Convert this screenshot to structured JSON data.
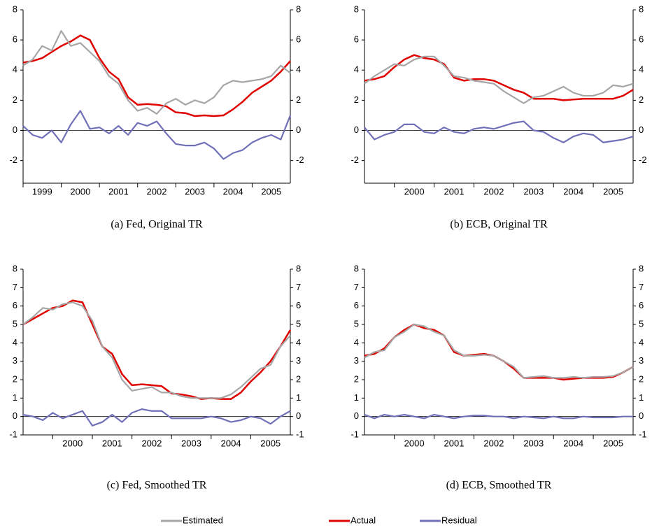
{
  "chart_data": [
    {
      "type": "line",
      "caption": "(a)  Fed, Original TR",
      "x": [
        1999,
        1999.25,
        1999.5,
        1999.75,
        2000,
        2000.25,
        2000.5,
        2000.75,
        2001,
        2001.25,
        2001.5,
        2001.75,
        2002,
        2002.25,
        2002.5,
        2002.75,
        2003,
        2003.25,
        2003.5,
        2003.75,
        2004,
        2004.25,
        2004.5,
        2004.75,
        2005,
        2005.25,
        2005.5,
        2005.75,
        2006
      ],
      "xlim": [
        1999,
        2006
      ],
      "xticks": [
        {
          "value": 1999,
          "label": "1999"
        },
        {
          "value": 2000,
          "label": "2000"
        },
        {
          "value": 2001,
          "label": "2001"
        },
        {
          "value": 2002,
          "label": "2002"
        },
        {
          "value": 2003,
          "label": "2003"
        },
        {
          "value": 2004,
          "label": "2004"
        },
        {
          "value": 2005,
          "label": "2005"
        }
      ],
      "ylim": [
        -3.5,
        8
      ],
      "yticks": [
        -2,
        0,
        2,
        4,
        6,
        8
      ],
      "series": [
        {
          "name": "Estimated",
          "color": "#a6a6a6",
          "values": [
            4.3,
            4.7,
            5.6,
            5.3,
            6.6,
            5.6,
            5.8,
            5.2,
            4.6,
            3.6,
            3.1,
            2.0,
            1.3,
            1.5,
            1.1,
            1.8,
            2.1,
            1.7,
            2.0,
            1.8,
            2.2,
            3.0,
            3.3,
            3.2,
            3.3,
            3.4,
            3.6,
            4.3,
            3.8
          ]
        },
        {
          "name": "Actual",
          "color": "#e00000",
          "values": [
            4.5,
            4.6,
            4.8,
            5.2,
            5.6,
            5.9,
            6.3,
            6.0,
            4.8,
            3.9,
            3.4,
            2.2,
            1.7,
            1.75,
            1.7,
            1.6,
            1.2,
            1.15,
            0.95,
            1.0,
            0.95,
            1.0,
            1.4,
            1.9,
            2.5,
            2.9,
            3.3,
            3.9,
            4.6
          ]
        },
        {
          "name": "Residual",
          "color": "#7070b8",
          "values": [
            0.3,
            -0.3,
            -0.5,
            0,
            -0.8,
            0.4,
            1.3,
            0.1,
            0.2,
            -0.2,
            0.3,
            -0.3,
            0.5,
            0.3,
            0.6,
            -0.2,
            -0.9,
            -1.0,
            -1.0,
            -0.8,
            -1.2,
            -1.9,
            -1.5,
            -1.3,
            -0.8,
            -0.5,
            -0.3,
            -0.6,
            1.0
          ]
        }
      ]
    },
    {
      "type": "line",
      "caption": "(b)  ECB, Original TR",
      "x": [
        1999.25,
        1999.5,
        1999.75,
        2000,
        2000.25,
        2000.5,
        2000.75,
        2001,
        2001.25,
        2001.5,
        2001.75,
        2002,
        2002.25,
        2002.5,
        2002.75,
        2003,
        2003.25,
        2003.5,
        2003.75,
        2004,
        2004.25,
        2004.5,
        2004.75,
        2005,
        2005.25,
        2005.5,
        2005.75,
        2006
      ],
      "xlim": [
        1999.25,
        2006
      ],
      "xticks": [
        {
          "value": 2000,
          "label": "2000"
        },
        {
          "value": 2001,
          "label": "2001"
        },
        {
          "value": 2002,
          "label": "2002"
        },
        {
          "value": 2003,
          "label": "2003"
        },
        {
          "value": 2004,
          "label": "2004"
        },
        {
          "value": 2005,
          "label": "2005"
        }
      ],
      "ylim": [
        -3.5,
        8
      ],
      "yticks": [
        -2,
        0,
        2,
        4,
        6,
        8
      ],
      "series": [
        {
          "name": "Estimated",
          "color": "#a6a6a6",
          "values": [
            3.1,
            3.6,
            4.0,
            4.4,
            4.3,
            4.7,
            4.9,
            4.9,
            4.3,
            3.6,
            3.5,
            3.3,
            3.2,
            3.1,
            2.6,
            2.2,
            1.8,
            2.2,
            2.3,
            2.6,
            2.9,
            2.5,
            2.3,
            2.3,
            2.5,
            3.0,
            2.9,
            3.1
          ]
        },
        {
          "name": "Actual",
          "color": "#e00000",
          "values": [
            3.3,
            3.4,
            3.6,
            4.2,
            4.7,
            5.0,
            4.8,
            4.7,
            4.4,
            3.5,
            3.3,
            3.4,
            3.4,
            3.3,
            3.0,
            2.7,
            2.5,
            2.1,
            2.1,
            2.1,
            2.0,
            2.05,
            2.1,
            2.1,
            2.1,
            2.1,
            2.3,
            2.7
          ]
        },
        {
          "name": "Residual",
          "color": "#7070b8",
          "values": [
            0.2,
            -0.6,
            -0.3,
            -0.1,
            0.4,
            0.4,
            -0.1,
            -0.2,
            0.2,
            -0.1,
            -0.2,
            0.1,
            0.2,
            0.1,
            0.3,
            0.5,
            0.6,
            0,
            -0.1,
            -0.5,
            -0.8,
            -0.4,
            -0.2,
            -0.3,
            -0.8,
            -0.7,
            -0.6,
            -0.4
          ]
        }
      ]
    },
    {
      "type": "line",
      "caption": "(c)  Fed, Smoothed TR",
      "x": [
        1999.25,
        1999.5,
        1999.75,
        2000,
        2000.25,
        2000.5,
        2000.75,
        2001,
        2001.25,
        2001.5,
        2001.75,
        2002,
        2002.25,
        2002.5,
        2002.75,
        2003,
        2003.25,
        2003.5,
        2003.75,
        2004,
        2004.25,
        2004.5,
        2004.75,
        2005,
        2005.25,
        2005.5,
        2005.75,
        2006
      ],
      "xlim": [
        1999.25,
        2006
      ],
      "xticks": [
        {
          "value": 2000,
          "label": "2000"
        },
        {
          "value": 2001,
          "label": "2001"
        },
        {
          "value": 2002,
          "label": "2002"
        },
        {
          "value": 2003,
          "label": "2003"
        },
        {
          "value": 2004,
          "label": "2004"
        },
        {
          "value": 2005,
          "label": "2005"
        }
      ],
      "ylim": [
        -1,
        8
      ],
      "yticks": [
        -1,
        0,
        1,
        2,
        3,
        4,
        5,
        6,
        7,
        8
      ],
      "series": [
        {
          "name": "Estimated",
          "color": "#a6a6a6",
          "values": [
            5.0,
            5.4,
            5.9,
            5.8,
            6.1,
            6.2,
            6.0,
            5.2,
            3.8,
            3.2,
            2.0,
            1.4,
            1.5,
            1.6,
            1.3,
            1.3,
            1.1,
            1.0,
            1.0,
            1.0,
            1.0,
            1.2,
            1.6,
            2.1,
            2.6,
            2.8,
            3.8,
            4.4
          ]
        },
        {
          "name": "Actual",
          "color": "#e00000",
          "values": [
            5.0,
            5.3,
            5.6,
            5.9,
            6.0,
            6.3,
            6.2,
            5.0,
            3.8,
            3.4,
            2.3,
            1.7,
            1.75,
            1.7,
            1.65,
            1.25,
            1.2,
            1.1,
            0.95,
            1.0,
            0.95,
            0.95,
            1.3,
            1.9,
            2.4,
            3.0,
            3.8,
            4.7
          ]
        },
        {
          "name": "Residual",
          "color": "#7070b8",
          "values": [
            0.1,
            0,
            -0.2,
            0.2,
            -0.1,
            0.1,
            0.3,
            -0.5,
            -0.3,
            0.1,
            -0.3,
            0.2,
            0.4,
            0.3,
            0.3,
            -0.1,
            -0.1,
            -0.1,
            -0.1,
            0,
            -0.1,
            -0.3,
            -0.2,
            0,
            -0.1,
            -0.4,
            0,
            0.3
          ]
        }
      ]
    },
    {
      "type": "line",
      "caption": "(d)  ECB, Smoothed TR",
      "x": [
        1999.25,
        1999.5,
        1999.75,
        2000,
        2000.25,
        2000.5,
        2000.75,
        2001,
        2001.25,
        2001.5,
        2001.75,
        2002,
        2002.25,
        2002.5,
        2002.75,
        2003,
        2003.25,
        2003.5,
        2003.75,
        2004,
        2004.25,
        2004.5,
        2004.75,
        2005,
        2005.25,
        2005.5,
        2005.75,
        2006
      ],
      "xlim": [
        1999.25,
        2006
      ],
      "xticks": [
        {
          "value": 2000,
          "label": "2000"
        },
        {
          "value": 2001,
          "label": "2001"
        },
        {
          "value": 2002,
          "label": "2002"
        },
        {
          "value": 2003,
          "label": "2003"
        },
        {
          "value": 2004,
          "label": "2004"
        },
        {
          "value": 2005,
          "label": "2005"
        }
      ],
      "ylim": [
        -1,
        8
      ],
      "yticks": [
        -1,
        0,
        1,
        2,
        3,
        4,
        5,
        6,
        7,
        8
      ],
      "series": [
        {
          "name": "Estimated",
          "color": "#a6a6a6",
          "values": [
            3.2,
            3.5,
            3.6,
            4.3,
            4.6,
            5.0,
            4.9,
            4.6,
            4.4,
            3.6,
            3.3,
            3.3,
            3.35,
            3.3,
            3.0,
            2.7,
            2.1,
            2.15,
            2.2,
            2.1,
            2.1,
            2.15,
            2.1,
            2.15,
            2.15,
            2.2,
            2.4,
            2.7
          ]
        },
        {
          "name": "Actual",
          "color": "#e00000",
          "values": [
            3.3,
            3.4,
            3.7,
            4.3,
            4.7,
            5.0,
            4.8,
            4.7,
            4.4,
            3.5,
            3.3,
            3.35,
            3.4,
            3.3,
            3.0,
            2.6,
            2.1,
            2.1,
            2.1,
            2.1,
            2.0,
            2.05,
            2.1,
            2.1,
            2.1,
            2.15,
            2.4,
            2.7
          ]
        },
        {
          "name": "Residual",
          "color": "#7070b8",
          "values": [
            0.1,
            -0.1,
            0.1,
            0,
            0.1,
            0,
            -0.1,
            0.1,
            0,
            -0.1,
            0,
            0.05,
            0.05,
            0,
            0,
            -0.1,
            0,
            -0.05,
            -0.1,
            0,
            -0.1,
            -0.1,
            0,
            -0.05,
            -0.05,
            -0.05,
            0,
            0
          ]
        }
      ]
    }
  ]
}
